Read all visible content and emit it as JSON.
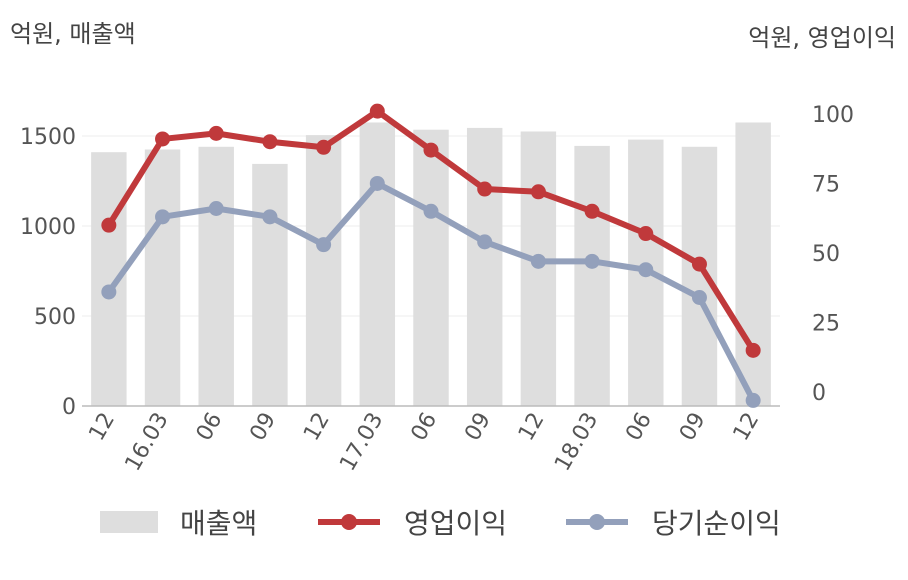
{
  "unit_left": "억원, 매출액",
  "unit_right": "억원, 영업이익",
  "chart_data": {
    "type": "bar+line",
    "categories": [
      "12",
      "16.03",
      "06",
      "09",
      "12",
      "17.03",
      "06",
      "09",
      "12",
      "18.03",
      "06",
      "09",
      "12"
    ],
    "left_axis": {
      "ylim": [
        0,
        1700
      ],
      "ticks": [
        0,
        500,
        1000,
        1500
      ]
    },
    "right_axis": {
      "ylim": [
        -5,
        105
      ],
      "ticks": [
        0,
        25,
        50,
        75,
        100
      ]
    },
    "series": [
      {
        "name": "매출액",
        "type": "bar",
        "axis": "left",
        "color": "#dedede",
        "values": [
          1410,
          1425,
          1440,
          1345,
          1505,
          1575,
          1535,
          1545,
          1525,
          1445,
          1480,
          1440,
          1575
        ]
      },
      {
        "name": "영업이익",
        "type": "line",
        "axis": "right",
        "color": "#c0393b",
        "values": [
          60,
          91,
          93,
          90,
          88,
          101,
          87,
          73,
          72,
          65,
          57,
          46,
          15
        ]
      },
      {
        "name": "당기순이익",
        "type": "line",
        "axis": "right",
        "color": "#93a0bb",
        "values": [
          36,
          63,
          66,
          63,
          53,
          75,
          65,
          54,
          47,
          47,
          44,
          34,
          -3
        ]
      }
    ]
  }
}
